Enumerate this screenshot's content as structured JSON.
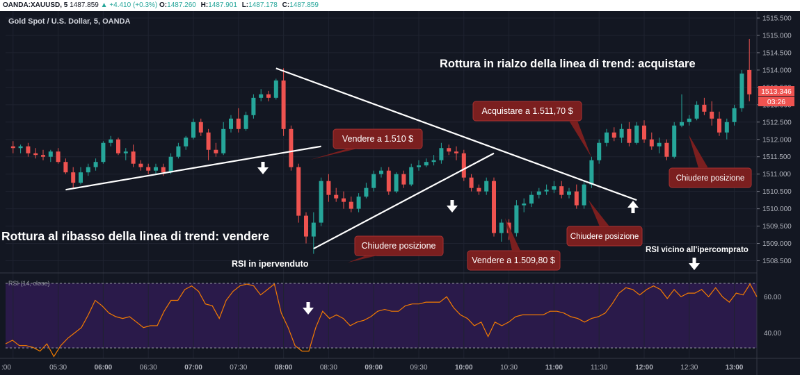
{
  "header": {
    "symbol": "OANDA:XAUUSD, 5",
    "last": "1487.859",
    "change": "+4.410 (+0.3%)",
    "ohlc": [
      {
        "k": "O:",
        "v": "1487.260"
      },
      {
        "k": "H:",
        "v": "1487.901"
      },
      {
        "k": "L:",
        "v": "1487.178"
      },
      {
        "k": "C:",
        "v": "1487.859"
      }
    ]
  },
  "chart_title": "Gold Spot / U.S. Dollar, 5, OANDA",
  "price_badge": {
    "value": "1513.346",
    "countdown": "03:26"
  },
  "colors": {
    "background": "#131722",
    "up": "#26a69a",
    "down": "#ef5350",
    "rsi_band": "#2a1a4a",
    "rsi_line": "#f57c00",
    "callout": "#7b1f1f",
    "trendline": "#ffffff"
  },
  "annotations": {
    "breakout_up": "Rottura in rialzo della linea di trend: acquistare",
    "breakout_down": "Rottura al ribasso della linea di trend: vendere",
    "rsi_oversold": "RSI in ipervenduto",
    "rsi_overbought": "RSI vicino all'ipercomprato",
    "sell_1510": "Vendere a 1.510 $",
    "close_1": "Chiudere posizione",
    "buy": "Acquistare a 1.511,70 $",
    "sell_1509": "Vendere a 1.509,80 $",
    "close_2": "Chiudere posizione",
    "close_3": "Chiudere posizione"
  },
  "icons": [
    "arrow-down-icon",
    "arrow-up-icon"
  ],
  "chart_data": [
    {
      "type": "candlestick",
      "title": "Gold Spot / U.S. Dollar, 5, OANDA",
      "x_ticks": [
        ":00",
        "05:30",
        "06:00",
        "06:30",
        "07:00",
        "07:30",
        "08:00",
        "08:30",
        "09:00",
        "09:30",
        "10:00",
        "10:30",
        "11:00",
        "11:30",
        "12:00",
        "12:30",
        "13:00"
      ],
      "x_range": [
        "05:00",
        "13:15"
      ],
      "y_ticks": [
        "1515.500",
        "1515.000",
        "1514.500",
        "1514.000",
        "1513.500",
        "1513.000",
        "1512.500",
        "1512.000",
        "1511.500",
        "1511.000",
        "1510.500",
        "1510.000",
        "1509.500",
        "1509.000",
        "1508.500"
      ],
      "ylim": [
        1508.15,
        1515.7
      ],
      "grid": true,
      "candles": [
        {
          "t": "05:00",
          "o": 1511.8,
          "h": 1511.95,
          "l": 1511.6,
          "c": 1511.75
        },
        {
          "t": "05:05",
          "o": 1511.75,
          "h": 1511.85,
          "l": 1511.6,
          "c": 1511.8
        },
        {
          "t": "05:10",
          "o": 1511.8,
          "h": 1511.9,
          "l": 1511.5,
          "c": 1511.6
        },
        {
          "t": "05:15",
          "o": 1511.6,
          "h": 1511.75,
          "l": 1511.45,
          "c": 1511.55
        },
        {
          "t": "05:20",
          "o": 1511.55,
          "h": 1511.7,
          "l": 1511.4,
          "c": 1511.5
        },
        {
          "t": "05:25",
          "o": 1511.5,
          "h": 1511.7,
          "l": 1511.35,
          "c": 1511.65
        },
        {
          "t": "05:30",
          "o": 1511.65,
          "h": 1511.75,
          "l": 1511.3,
          "c": 1511.35
        },
        {
          "t": "05:35",
          "o": 1511.35,
          "h": 1511.45,
          "l": 1511.0,
          "c": 1511.05
        },
        {
          "t": "05:40",
          "o": 1511.05,
          "h": 1511.2,
          "l": 1510.6,
          "c": 1510.75
        },
        {
          "t": "05:45",
          "o": 1510.75,
          "h": 1511.2,
          "l": 1510.7,
          "c": 1511.05
        },
        {
          "t": "05:50",
          "o": 1511.05,
          "h": 1511.3,
          "l": 1510.95,
          "c": 1511.2
        },
        {
          "t": "05:55",
          "o": 1511.2,
          "h": 1511.45,
          "l": 1511.1,
          "c": 1511.35
        },
        {
          "t": "06:00",
          "o": 1511.35,
          "h": 1511.95,
          "l": 1511.3,
          "c": 1511.9
        },
        {
          "t": "06:05",
          "o": 1511.9,
          "h": 1512.1,
          "l": 1511.8,
          "c": 1512.0
        },
        {
          "t": "06:10",
          "o": 1512.0,
          "h": 1512.05,
          "l": 1511.55,
          "c": 1511.6
        },
        {
          "t": "06:15",
          "o": 1511.6,
          "h": 1511.75,
          "l": 1511.4,
          "c": 1511.65
        },
        {
          "t": "06:20",
          "o": 1511.65,
          "h": 1511.85,
          "l": 1511.2,
          "c": 1511.3
        },
        {
          "t": "06:25",
          "o": 1511.3,
          "h": 1511.4,
          "l": 1511.1,
          "c": 1511.2
        },
        {
          "t": "06:30",
          "o": 1511.2,
          "h": 1511.3,
          "l": 1511.0,
          "c": 1511.1
        },
        {
          "t": "06:35",
          "o": 1511.1,
          "h": 1511.3,
          "l": 1511.0,
          "c": 1511.2
        },
        {
          "t": "06:40",
          "o": 1511.2,
          "h": 1511.3,
          "l": 1510.95,
          "c": 1511.05
        },
        {
          "t": "06:45",
          "o": 1511.05,
          "h": 1511.6,
          "l": 1511.0,
          "c": 1511.5
        },
        {
          "t": "06:50",
          "o": 1511.5,
          "h": 1511.9,
          "l": 1511.45,
          "c": 1511.8
        },
        {
          "t": "06:55",
          "o": 1511.8,
          "h": 1512.1,
          "l": 1511.7,
          "c": 1512.05
        },
        {
          "t": "07:00",
          "o": 1512.05,
          "h": 1512.6,
          "l": 1512.0,
          "c": 1512.5
        },
        {
          "t": "07:05",
          "o": 1512.5,
          "h": 1512.6,
          "l": 1512.1,
          "c": 1512.2
        },
        {
          "t": "07:10",
          "o": 1512.2,
          "h": 1512.3,
          "l": 1511.4,
          "c": 1511.7
        },
        {
          "t": "07:15",
          "o": 1511.7,
          "h": 1511.9,
          "l": 1511.5,
          "c": 1511.6
        },
        {
          "t": "07:20",
          "o": 1511.6,
          "h": 1512.5,
          "l": 1511.55,
          "c": 1512.3
        },
        {
          "t": "07:25",
          "o": 1512.3,
          "h": 1512.7,
          "l": 1512.2,
          "c": 1512.6
        },
        {
          "t": "07:30",
          "o": 1512.6,
          "h": 1512.9,
          "l": 1512.2,
          "c": 1512.3
        },
        {
          "t": "07:35",
          "o": 1512.3,
          "h": 1512.8,
          "l": 1512.25,
          "c": 1512.7
        },
        {
          "t": "07:40",
          "o": 1512.7,
          "h": 1513.3,
          "l": 1512.6,
          "c": 1513.2
        },
        {
          "t": "07:45",
          "o": 1513.2,
          "h": 1513.45,
          "l": 1513.1,
          "c": 1513.3
        },
        {
          "t": "07:50",
          "o": 1513.3,
          "h": 1513.4,
          "l": 1513.1,
          "c": 1513.2
        },
        {
          "t": "07:55",
          "o": 1513.2,
          "h": 1513.75,
          "l": 1513.15,
          "c": 1513.7
        },
        {
          "t": "08:00",
          "o": 1513.7,
          "h": 1514.05,
          "l": 1512.1,
          "c": 1512.3
        },
        {
          "t": "08:05",
          "o": 1512.3,
          "h": 1512.4,
          "l": 1511.1,
          "c": 1511.2
        },
        {
          "t": "08:10",
          "o": 1511.2,
          "h": 1511.3,
          "l": 1509.6,
          "c": 1509.8
        },
        {
          "t": "08:15",
          "o": 1509.8,
          "h": 1509.9,
          "l": 1509.0,
          "c": 1509.2
        },
        {
          "t": "08:20",
          "o": 1509.2,
          "h": 1509.9,
          "l": 1508.7,
          "c": 1509.6
        },
        {
          "t": "08:25",
          "o": 1509.6,
          "h": 1510.9,
          "l": 1509.5,
          "c": 1510.8
        },
        {
          "t": "08:30",
          "o": 1510.8,
          "h": 1511.0,
          "l": 1510.2,
          "c": 1510.4
        },
        {
          "t": "08:35",
          "o": 1510.4,
          "h": 1510.6,
          "l": 1510.2,
          "c": 1510.3
        },
        {
          "t": "08:40",
          "o": 1510.3,
          "h": 1510.5,
          "l": 1510.0,
          "c": 1510.2
        },
        {
          "t": "08:45",
          "o": 1510.2,
          "h": 1510.35,
          "l": 1509.9,
          "c": 1510.0
        },
        {
          "t": "08:50",
          "o": 1510.0,
          "h": 1510.45,
          "l": 1509.9,
          "c": 1510.35
        },
        {
          "t": "08:55",
          "o": 1510.35,
          "h": 1510.75,
          "l": 1510.3,
          "c": 1510.6
        },
        {
          "t": "09:00",
          "o": 1510.6,
          "h": 1511.1,
          "l": 1510.5,
          "c": 1511.0
        },
        {
          "t": "09:05",
          "o": 1511.0,
          "h": 1511.2,
          "l": 1510.9,
          "c": 1511.1
        },
        {
          "t": "09:10",
          "o": 1511.1,
          "h": 1511.2,
          "l": 1510.4,
          "c": 1510.5
        },
        {
          "t": "09:15",
          "o": 1510.5,
          "h": 1511.05,
          "l": 1510.45,
          "c": 1511.0
        },
        {
          "t": "09:20",
          "o": 1511.0,
          "h": 1511.1,
          "l": 1510.6,
          "c": 1510.7
        },
        {
          "t": "09:25",
          "o": 1510.7,
          "h": 1511.3,
          "l": 1510.65,
          "c": 1511.2
        },
        {
          "t": "09:30",
          "o": 1511.2,
          "h": 1511.4,
          "l": 1511.1,
          "c": 1511.25
        },
        {
          "t": "09:35",
          "o": 1511.25,
          "h": 1511.45,
          "l": 1511.2,
          "c": 1511.35
        },
        {
          "t": "09:40",
          "o": 1511.35,
          "h": 1511.55,
          "l": 1511.25,
          "c": 1511.4
        },
        {
          "t": "09:45",
          "o": 1511.4,
          "h": 1511.9,
          "l": 1511.3,
          "c": 1511.75
        },
        {
          "t": "09:50",
          "o": 1511.75,
          "h": 1511.85,
          "l": 1511.55,
          "c": 1511.65
        },
        {
          "t": "09:55",
          "o": 1511.65,
          "h": 1511.8,
          "l": 1511.4,
          "c": 1511.6
        },
        {
          "t": "10:00",
          "o": 1511.6,
          "h": 1511.7,
          "l": 1510.8,
          "c": 1510.9
        },
        {
          "t": "10:05",
          "o": 1510.9,
          "h": 1511.0,
          "l": 1510.5,
          "c": 1510.6
        },
        {
          "t": "10:10",
          "o": 1510.6,
          "h": 1510.7,
          "l": 1510.4,
          "c": 1510.5
        },
        {
          "t": "10:15",
          "o": 1510.5,
          "h": 1510.9,
          "l": 1510.4,
          "c": 1510.8
        },
        {
          "t": "10:20",
          "o": 1510.8,
          "h": 1510.9,
          "l": 1509.2,
          "c": 1509.3
        },
        {
          "t": "10:25",
          "o": 1509.3,
          "h": 1509.7,
          "l": 1509.05,
          "c": 1509.6
        },
        {
          "t": "10:30",
          "o": 1509.6,
          "h": 1509.7,
          "l": 1509.1,
          "c": 1509.3
        },
        {
          "t": "10:35",
          "o": 1509.3,
          "h": 1510.25,
          "l": 1509.2,
          "c": 1510.1
        },
        {
          "t": "10:40",
          "o": 1510.1,
          "h": 1510.3,
          "l": 1509.9,
          "c": 1510.15
        },
        {
          "t": "10:45",
          "o": 1510.15,
          "h": 1510.5,
          "l": 1510.05,
          "c": 1510.4
        },
        {
          "t": "10:50",
          "o": 1510.4,
          "h": 1510.6,
          "l": 1510.3,
          "c": 1510.5
        },
        {
          "t": "10:55",
          "o": 1510.5,
          "h": 1510.7,
          "l": 1510.4,
          "c": 1510.55
        },
        {
          "t": "11:00",
          "o": 1510.55,
          "h": 1510.8,
          "l": 1510.45,
          "c": 1510.65
        },
        {
          "t": "11:05",
          "o": 1510.65,
          "h": 1510.8,
          "l": 1510.3,
          "c": 1510.4
        },
        {
          "t": "11:10",
          "o": 1510.4,
          "h": 1510.6,
          "l": 1510.3,
          "c": 1510.5
        },
        {
          "t": "11:15",
          "o": 1510.5,
          "h": 1510.7,
          "l": 1510.0,
          "c": 1510.1
        },
        {
          "t": "11:20",
          "o": 1510.1,
          "h": 1510.8,
          "l": 1510.0,
          "c": 1510.7
        },
        {
          "t": "11:25",
          "o": 1510.7,
          "h": 1511.5,
          "l": 1510.6,
          "c": 1511.4
        },
        {
          "t": "11:30",
          "o": 1511.4,
          "h": 1512.0,
          "l": 1511.3,
          "c": 1511.9
        },
        {
          "t": "11:35",
          "o": 1511.9,
          "h": 1512.3,
          "l": 1511.8,
          "c": 1512.2
        },
        {
          "t": "11:40",
          "o": 1512.2,
          "h": 1512.35,
          "l": 1511.95,
          "c": 1512.05
        },
        {
          "t": "11:45",
          "o": 1512.05,
          "h": 1512.45,
          "l": 1511.9,
          "c": 1512.3
        },
        {
          "t": "11:50",
          "o": 1512.3,
          "h": 1512.5,
          "l": 1511.8,
          "c": 1511.9
        },
        {
          "t": "11:55",
          "o": 1511.9,
          "h": 1512.5,
          "l": 1511.85,
          "c": 1512.4
        },
        {
          "t": "12:00",
          "o": 1512.4,
          "h": 1512.55,
          "l": 1511.9,
          "c": 1512.0
        },
        {
          "t": "12:05",
          "o": 1512.0,
          "h": 1512.2,
          "l": 1511.7,
          "c": 1511.8
        },
        {
          "t": "12:10",
          "o": 1511.8,
          "h": 1512.05,
          "l": 1511.6,
          "c": 1511.9
        },
        {
          "t": "12:15",
          "o": 1511.9,
          "h": 1512.0,
          "l": 1511.4,
          "c": 1511.5
        },
        {
          "t": "12:20",
          "o": 1511.5,
          "h": 1512.5,
          "l": 1511.45,
          "c": 1512.4
        },
        {
          "t": "12:25",
          "o": 1512.4,
          "h": 1513.3,
          "l": 1512.35,
          "c": 1512.5
        },
        {
          "t": "12:30",
          "o": 1512.5,
          "h": 1512.7,
          "l": 1512.4,
          "c": 1512.6
        },
        {
          "t": "12:35",
          "o": 1512.6,
          "h": 1513.1,
          "l": 1512.55,
          "c": 1513.0
        },
        {
          "t": "12:40",
          "o": 1513.0,
          "h": 1513.2,
          "l": 1512.7,
          "c": 1512.8
        },
        {
          "t": "12:45",
          "o": 1512.8,
          "h": 1513.1,
          "l": 1512.4,
          "c": 1512.6
        },
        {
          "t": "12:50",
          "o": 1512.6,
          "h": 1512.8,
          "l": 1512.1,
          "c": 1512.2
        },
        {
          "t": "12:55",
          "o": 1512.2,
          "h": 1512.6,
          "l": 1512.0,
          "c": 1512.5
        },
        {
          "t": "13:00",
          "o": 1512.5,
          "h": 1513.0,
          "l": 1512.4,
          "c": 1512.9
        },
        {
          "t": "13:05",
          "o": 1512.9,
          "h": 1514.0,
          "l": 1512.8,
          "c": 1513.9
        },
        {
          "t": "13:10",
          "o": 1514.0,
          "h": 1514.9,
          "l": 1513.1,
          "c": 1513.3
        }
      ],
      "trendlines": [
        {
          "name": "rising-support-1",
          "from": {
            "t": "05:35",
            "price": 1510.55
          },
          "to": {
            "t": "08:25",
            "price": 1511.8
          }
        },
        {
          "name": "falling-resistance",
          "from": {
            "t": "07:55",
            "price": 1514.05
          },
          "to": {
            "t": "11:55",
            "price": 1510.25
          }
        },
        {
          "name": "rising-support-2",
          "from": {
            "t": "08:20",
            "price": 1508.85
          },
          "to": {
            "t": "10:20",
            "price": 1511.6
          }
        }
      ]
    },
    {
      "type": "line",
      "title": "RSI (14, close)",
      "y_ticks": [
        "60.00",
        "40.00"
      ],
      "ylim": [
        26,
        72
      ],
      "band": [
        30,
        70
      ],
      "series": [
        {
          "values": [
            34,
            36,
            33,
            33,
            32,
            30,
            34,
            27,
            33,
            37,
            40,
            43,
            50,
            58,
            55,
            51,
            49,
            48,
            49,
            46,
            43,
            44,
            44,
            52,
            58,
            58,
            64,
            66,
            63,
            56,
            55,
            48,
            58,
            63,
            66,
            67,
            66,
            61,
            64,
            67,
            51,
            43,
            33,
            30,
            30,
            43,
            52,
            48,
            50,
            48,
            44,
            46,
            47,
            49,
            52,
            53,
            52,
            52,
            55,
            56,
            56,
            57,
            57,
            57,
            60,
            54,
            50,
            48,
            44,
            46,
            38,
            46,
            44,
            46,
            49,
            50,
            50,
            50,
            50,
            52,
            52,
            51,
            49,
            48,
            46,
            48,
            49,
            51,
            56,
            62,
            65,
            64,
            61,
            64,
            66,
            64,
            59,
            64,
            60,
            62,
            62,
            64,
            60,
            65,
            60,
            57,
            62,
            61,
            67,
            60
          ]
        }
      ]
    }
  ]
}
